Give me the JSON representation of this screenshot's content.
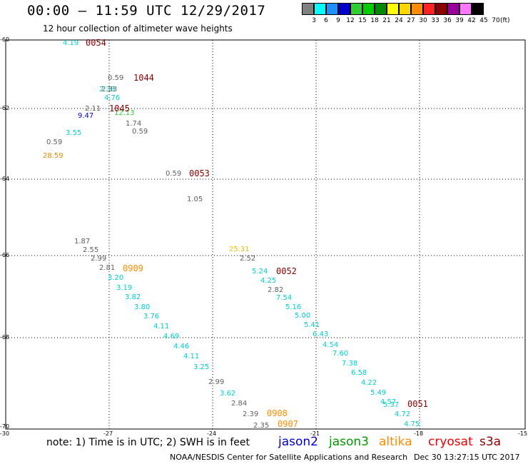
{
  "header": {
    "title": "00:00 — 11:59 UTC 12/29/2017",
    "subtitle": "12 hour collection of altimeter wave heights"
  },
  "legend": {
    "colors": [
      "#808080",
      "#00ffff",
      "#1e90ff",
      "#0000cd",
      "#32cd32",
      "#00cc00",
      "#008800",
      "#ffff00",
      "#ffd700",
      "#ff8c00",
      "#ff2222",
      "#8b0000",
      "#990099",
      "#ff77ff",
      "#000000"
    ],
    "labels": [
      "3",
      "6",
      "9",
      "12",
      "15",
      "18",
      "21",
      "24",
      "27",
      "30",
      "33",
      "36",
      "39",
      "42",
      "45",
      "70"
    ],
    "unit": "(ft)"
  },
  "axes": {
    "lat_ticks": [
      "-60",
      "-62",
      "-64",
      "-66",
      "-68",
      "-70"
    ],
    "lon_ticks": [
      "-30",
      "-27",
      "-24",
      "-21",
      "-18",
      "-15"
    ]
  },
  "observations": [
    {
      "text": "4.19",
      "color": "#00cccc"
    },
    {
      "text": "0.59",
      "color": "#606060"
    },
    {
      "text": "2.38",
      "color": "#00cccc"
    },
    {
      "text": "2.33",
      "color": "#606060"
    },
    {
      "text": "4.76",
      "color": "#00cccc"
    },
    {
      "text": "2.11",
      "color": "#606060"
    },
    {
      "text": "12.13",
      "color": "#33cc33"
    },
    {
      "text": "9.47",
      "color": "#0000cc"
    },
    {
      "text": "1.74",
      "color": "#606060"
    },
    {
      "text": "0.59",
      "color": "#606060"
    },
    {
      "text": "3.55",
      "color": "#00cccc"
    },
    {
      "text": "0.59",
      "color": "#606060"
    },
    {
      "text": "28.59",
      "color": "#dd8800"
    },
    {
      "text": "0.59",
      "color": "#606060"
    },
    {
      "text": "1.05",
      "color": "#606060"
    },
    {
      "text": "1.87",
      "color": "#606060"
    },
    {
      "text": "2.55",
      "color": "#606060"
    },
    {
      "text": "2.99",
      "color": "#606060"
    },
    {
      "text": "2.81",
      "color": "#606060"
    },
    {
      "text": "3.20",
      "color": "#00cccc"
    },
    {
      "text": "3.19",
      "color": "#00cccc"
    },
    {
      "text": "3.82",
      "color": "#00cccc"
    },
    {
      "text": "3.80",
      "color": "#00cccc"
    },
    {
      "text": "3.76",
      "color": "#00cccc"
    },
    {
      "text": "4.11",
      "color": "#00cccc"
    },
    {
      "text": "4.69",
      "color": "#00cccc"
    },
    {
      "text": "4.46",
      "color": "#00cccc"
    },
    {
      "text": "4.11",
      "color": "#00cccc"
    },
    {
      "text": "3.25",
      "color": "#00cccc"
    },
    {
      "text": "2.99",
      "color": "#606060"
    },
    {
      "text": "3.62",
      "color": "#00cccc"
    },
    {
      "text": "2.84",
      "color": "#606060"
    },
    {
      "text": "2.39",
      "color": "#606060"
    },
    {
      "text": "2.35",
      "color": "#606060"
    },
    {
      "text": "25.31",
      "color": "#e6c200"
    },
    {
      "text": "2.52",
      "color": "#606060"
    },
    {
      "text": "5.24",
      "color": "#00cccc"
    },
    {
      "text": "4.25",
      "color": "#00cccc"
    },
    {
      "text": "2.82",
      "color": "#606060"
    },
    {
      "text": "7.54",
      "color": "#00cccc"
    },
    {
      "text": "5.16",
      "color": "#00cccc"
    },
    {
      "text": "5.00",
      "color": "#00cccc"
    },
    {
      "text": "5.41",
      "color": "#00cccc"
    },
    {
      "text": "6.43",
      "color": "#00cccc"
    },
    {
      "text": "4.54",
      "color": "#00cccc"
    },
    {
      "text": "7.60",
      "color": "#00cccc"
    },
    {
      "text": "7.38",
      "color": "#00cccc"
    },
    {
      "text": "6.58",
      "color": "#00cccc"
    },
    {
      "text": "4.22",
      "color": "#00cccc"
    },
    {
      "text": "5.49",
      "color": "#00cccc"
    },
    {
      "text": "4.57",
      "color": "#00cccc"
    },
    {
      "text": "5.37",
      "color": "#00cccc"
    },
    {
      "text": "4.72",
      "color": "#00cccc"
    },
    {
      "text": "4.75",
      "color": "#00cccc"
    }
  ],
  "passes": [
    {
      "text": "0054",
      "style": "cryosat"
    },
    {
      "text": "1044",
      "style": "cryosat"
    },
    {
      "text": "1045",
      "style": "cryosat"
    },
    {
      "text": "0053",
      "style": "cryosat"
    },
    {
      "text": "0909",
      "style": "altika"
    },
    {
      "text": "0052",
      "style": "cryosat"
    },
    {
      "text": "0908",
      "style": "altika"
    },
    {
      "text": "0907",
      "style": "altika"
    },
    {
      "text": "0051",
      "style": "cryosat"
    }
  ],
  "footer": {
    "note": "note: 1) Time is in UTC; 2) SWH is in feet",
    "satellites": [
      {
        "name": "jason2",
        "color": "#0000cc"
      },
      {
        "name": "jason3",
        "color": "#009900"
      },
      {
        "name": "altika",
        "color": "#ff8c00"
      },
      {
        "name": "cryosat",
        "color": "#ee0000"
      },
      {
        "name": "s3a",
        "color": "#8b0000"
      }
    ],
    "credit": "NOAA/NESDIS Center for Satellite Applications and Research",
    "timestamp": "Dec 30 13:27:15 UTC 2017"
  }
}
